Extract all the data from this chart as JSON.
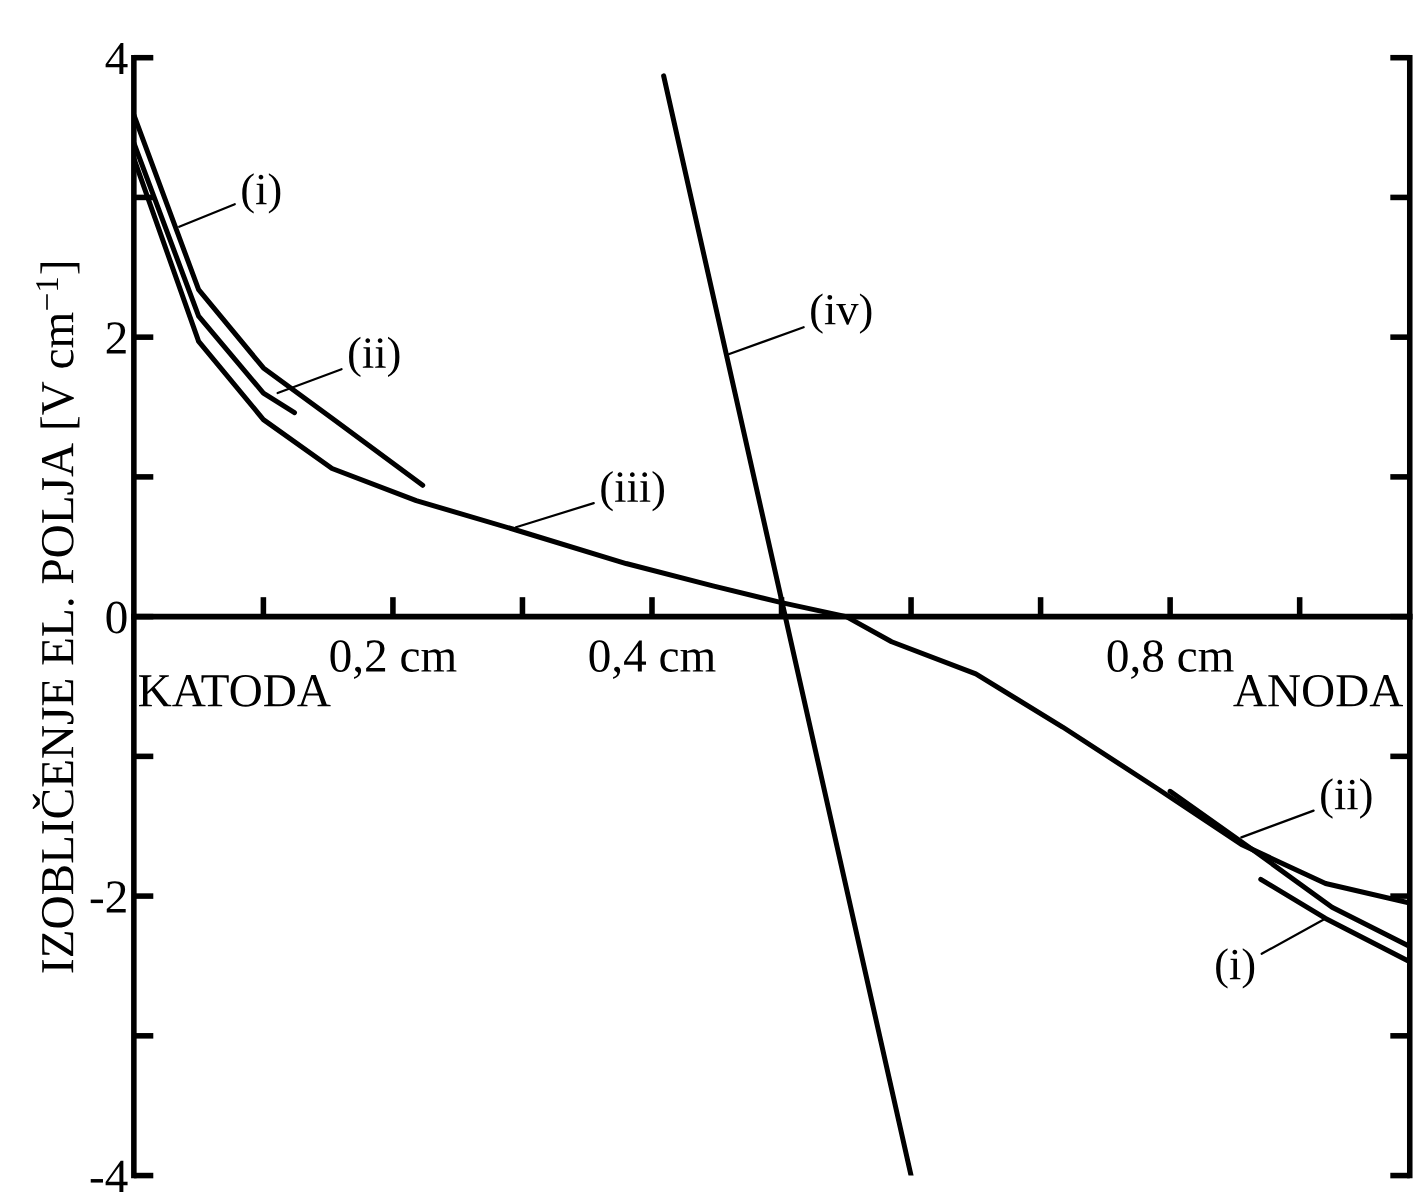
{
  "chart_data": {
    "type": "line",
    "ylabel": "IZOBLIČENJE EL. POLJA [V cm$^{−1}$]",
    "xlim": [
      0,
      0.985
    ],
    "ylim": [
      -4,
      4
    ],
    "xticks": [
      {
        "value": 0.1,
        "label": null
      },
      {
        "value": 0.2,
        "label": "0,2 cm"
      },
      {
        "value": 0.3,
        "label": null
      },
      {
        "value": 0.4,
        "label": "0,4 cm"
      },
      {
        "value": 0.5,
        "label": null
      },
      {
        "value": 0.6,
        "label": null
      },
      {
        "value": 0.7,
        "label": null
      },
      {
        "value": 0.8,
        "label": "0,8 cm"
      },
      {
        "value": 0.9,
        "label": null
      }
    ],
    "yticks": [
      -4,
      {
        "value": -3,
        "label": null
      },
      -2,
      {
        "value": -1,
        "label": null
      },
      0,
      {
        "value": 1,
        "label": null
      },
      2,
      {
        "value": 3,
        "label": null
      },
      4
    ],
    "grid": false,
    "marker": "none",
    "line_style": "solid",
    "series": [
      {
        "color": "#000000",
        "x": [
          0,
          0.05,
          0.1,
          0.153,
          0.223
        ],
        "values": [
          3.59,
          2.34,
          1.78,
          1.42,
          0.94
        ]
      },
      {
        "color": "#000000",
        "x": [
          0,
          0.05,
          0.1,
          0.124
        ],
        "values": [
          3.39,
          2.15,
          1.6,
          1.46
        ]
      },
      {
        "color": "#000000",
        "x": [
          0,
          0.05,
          0.1,
          0.153,
          0.218,
          0.295,
          0.38,
          0.447,
          0.5,
          0.55,
          0.585,
          0.65,
          0.717,
          0.79,
          0.855,
          0.92,
          0.985
        ],
        "values": [
          3.28,
          1.97,
          1.41,
          1.06,
          0.83,
          0.62,
          0.38,
          0.22,
          0.1,
          0.0,
          -0.18,
          -0.41,
          -0.79,
          -1.23,
          -1.63,
          -1.91,
          -2.05
        ]
      },
      {
        "color": "#000000",
        "x": [
          0.409,
          0.6
        ],
        "values": [
          3.87,
          -4.0
        ]
      },
      {
        "color": "#000000",
        "x": [
          0.8,
          0.864,
          0.925,
          0.985
        ],
        "values": [
          -1.25,
          -1.67,
          -2.08,
          -2.36
        ]
      },
      {
        "color": "#000000",
        "x": [
          0.87,
          0.92,
          0.985
        ],
        "values": [
          -1.88,
          -2.16,
          -2.47
        ]
      }
    ],
    "annotations": [
      {
        "text": "(i)",
        "x": 0.035,
        "y": 2.79
      },
      {
        "text": "(ii)",
        "x": 0.111,
        "y": 1.6
      },
      {
        "text": "(iii)",
        "x": 0.295,
        "y": 0.64
      },
      {
        "text": "(iv)",
        "x": 0.457,
        "y": 1.87
      },
      {
        "text": "(ii)",
        "x": 0.855,
        "y": -1.58
      },
      {
        "text": "(i)",
        "x": 0.92,
        "y": -2.16
      },
      "KATODA",
      "ANODA"
    ]
  }
}
